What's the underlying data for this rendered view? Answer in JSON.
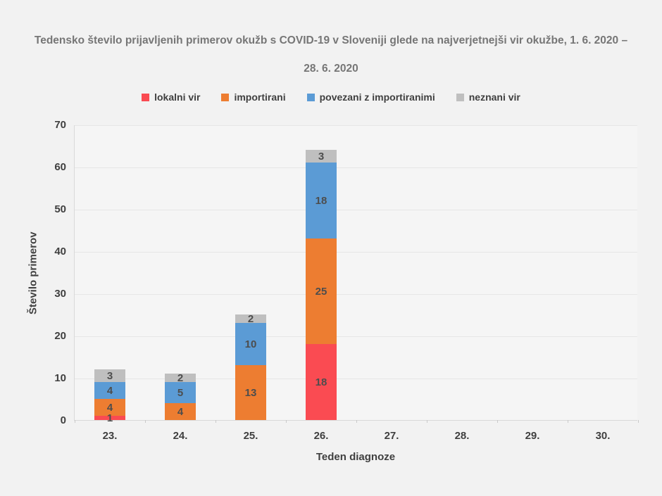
{
  "page": {
    "background": "#f2f2f2"
  },
  "title": {
    "line1": "Tedensko število prijavljenih primerov okužb s COVID-19 v Sloveniji glede na najverjetnejši vir okužbe, 1. 6. 2020 –",
    "line2": "28. 6. 2020"
  },
  "chart_data": {
    "type": "bar",
    "stacked": true,
    "title": "Tedensko število prijavljenih primerov okužb s COVID-19 v Sloveniji glede na najverjetnejši vir okužbe, 1. 6. 2020 – 28. 6. 2020",
    "xlabel": "Teden diagnoze",
    "ylabel": "Število primerov",
    "categories": [
      "23.",
      "24.",
      "25.",
      "26.",
      "27.",
      "28.",
      "29.",
      "30."
    ],
    "series": [
      {
        "name": "lokalni vir",
        "color": "#fa4b52",
        "values": [
          1,
          0,
          0,
          18,
          0,
          0,
          0,
          0
        ]
      },
      {
        "name": "importirani",
        "color": "#ed7d31",
        "values": [
          4,
          4,
          13,
          25,
          0,
          0,
          0,
          0
        ]
      },
      {
        "name": "povezani z importiranimi",
        "color": "#5b9bd5",
        "values": [
          4,
          5,
          10,
          18,
          0,
          0,
          0,
          0
        ]
      },
      {
        "name": "neznani vir",
        "color": "#bfbfbf",
        "values": [
          3,
          2,
          2,
          3,
          0,
          0,
          0,
          0
        ]
      }
    ],
    "totals": [
      12,
      11,
      25,
      64,
      0,
      0,
      0,
      0
    ],
    "ylim": [
      0,
      70
    ],
    "yticks": [
      0,
      10,
      20,
      30,
      40,
      50,
      60,
      70
    ],
    "grid": true,
    "legend_position": "top",
    "data_labels": true,
    "colors": {
      "title_text": "#767676",
      "axis_text": "#3f3f3f",
      "segment_label_text": "#4d4d4d",
      "gridline": "#e6e6e6",
      "axis_line": "#d9d9d9",
      "plot_background": "#f5f5f5",
      "page_background": "#f2f2f2"
    }
  }
}
